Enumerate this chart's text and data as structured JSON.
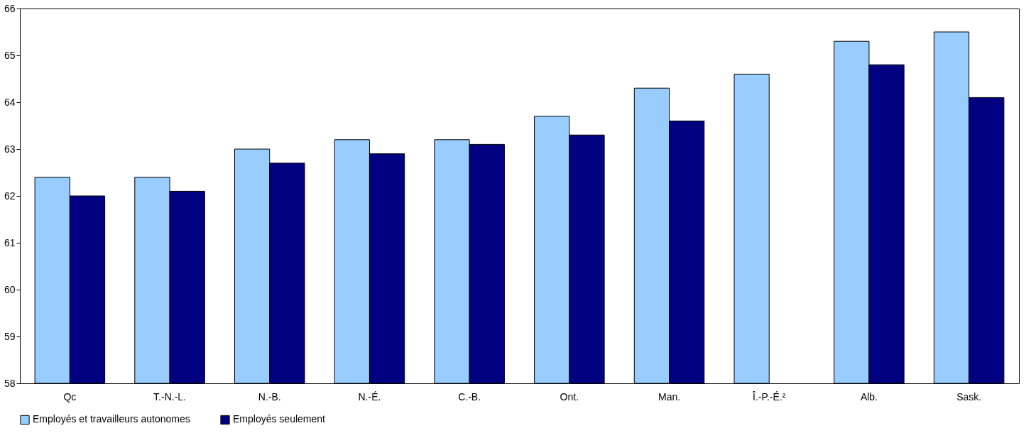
{
  "chart_data": {
    "type": "bar",
    "categories": [
      "Qc",
      "T.-N.-L.",
      "N.-B.",
      "N.-É.",
      "C.-B.",
      "Ont.",
      "Man.",
      "Î.-P.-É.²",
      "Alb.",
      "Sask."
    ],
    "series": [
      {
        "name": "Employés et travailleurs autonomes",
        "color": "#99ccff",
        "values": [
          62.4,
          62.4,
          63.0,
          63.2,
          63.2,
          63.7,
          64.3,
          64.6,
          65.3,
          65.5
        ]
      },
      {
        "name": "Employés seulement",
        "color": "#000080",
        "values": [
          62.0,
          62.1,
          62.7,
          62.9,
          63.1,
          63.3,
          63.6,
          null,
          64.8,
          64.1
        ]
      }
    ],
    "ylim": [
      58,
      66
    ],
    "yticks": [
      58,
      59,
      60,
      61,
      62,
      63,
      64,
      65,
      66
    ],
    "grid": false,
    "legend": "bottom"
  }
}
